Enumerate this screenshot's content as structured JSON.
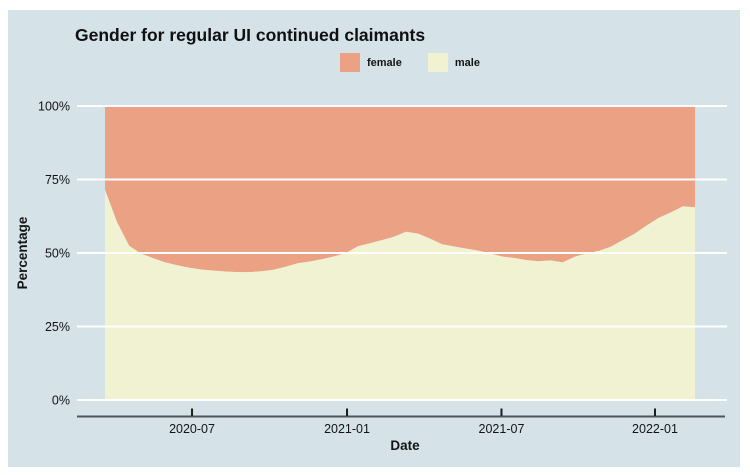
{
  "title": "Gender for regular UI continued claimants",
  "card_background": "#D5E2E8",
  "legend": [
    {
      "label": "female",
      "color": "#EBA184"
    },
    {
      "label": "male",
      "color": "#F1F2D2"
    }
  ],
  "chart_data": {
    "type": "area",
    "stacked": true,
    "normalized_percent": true,
    "title": "Gender for regular UI continued claimants",
    "xlabel": "Date",
    "ylabel": "Percentage",
    "ylim": [
      0,
      100
    ],
    "grid": true,
    "gridline_color": "#ffffff",
    "legend_position": "top-center",
    "y_ticks": [
      {
        "label": "0%",
        "value": 0
      },
      {
        "label": "25%",
        "value": 25
      },
      {
        "label": "50%",
        "value": 50
      },
      {
        "label": "75%",
        "value": 75
      },
      {
        "label": "100%",
        "value": 100
      }
    ],
    "x_ticks": [
      {
        "label": "2020-07",
        "pos": 0.1475
      },
      {
        "label": "2021-01",
        "pos": 0.4102
      },
      {
        "label": "2021-07",
        "pos": 0.672
      },
      {
        "label": "2022-01",
        "pos": 0.9322
      }
    ],
    "x": [
      "2020-03-22",
      "2020-04-05",
      "2020-04-19",
      "2020-05-03",
      "2020-05-17",
      "2020-05-31",
      "2020-06-14",
      "2020-06-28",
      "2020-07-12",
      "2020-07-26",
      "2020-08-09",
      "2020-08-23",
      "2020-09-06",
      "2020-09-20",
      "2020-10-04",
      "2020-10-18",
      "2020-11-01",
      "2020-11-15",
      "2020-11-29",
      "2020-12-13",
      "2020-12-27",
      "2021-01-10",
      "2021-01-24",
      "2021-02-07",
      "2021-02-21",
      "2021-03-07",
      "2021-03-21",
      "2021-04-04",
      "2021-04-18",
      "2021-05-02",
      "2021-05-16",
      "2021-05-30",
      "2021-06-13",
      "2021-06-27",
      "2021-07-11",
      "2021-07-25",
      "2021-08-08",
      "2021-08-22",
      "2021-09-05",
      "2021-09-19",
      "2021-10-03",
      "2021-10-17",
      "2021-10-31",
      "2021-11-14",
      "2021-11-28",
      "2021-12-12",
      "2021-12-26",
      "2022-01-09",
      "2022-01-23",
      "2022-02-06"
    ],
    "series": [
      {
        "name": "male",
        "color": "#F1F2D2",
        "values": [
          71.5,
          60.5,
          52.5,
          49.8,
          48.2,
          46.8,
          45.8,
          45.0,
          44.4,
          44.0,
          43.7,
          43.5,
          43.5,
          43.8,
          44.3,
          45.3,
          46.5,
          47.1,
          47.9,
          48.8,
          50.0,
          52.3,
          53.3,
          54.4,
          55.5,
          57.2,
          56.6,
          54.9,
          53.0,
          52.2,
          51.5,
          50.8,
          49.8,
          48.8,
          48.3,
          47.6,
          47.2,
          47.5,
          46.8,
          48.7,
          49.9,
          50.7,
          52.1,
          54.4,
          56.6,
          59.4,
          62.0,
          63.8,
          65.9,
          65.5
        ]
      },
      {
        "name": "female",
        "color": "#EBA184",
        "values": [
          28.5,
          39.5,
          47.5,
          50.2,
          51.8,
          53.2,
          54.2,
          55.0,
          55.6,
          56.0,
          56.3,
          56.5,
          56.5,
          56.2,
          55.7,
          54.7,
          53.5,
          52.9,
          52.1,
          51.2,
          50.0,
          47.7,
          46.7,
          45.6,
          44.5,
          42.8,
          43.4,
          45.1,
          47.0,
          47.8,
          48.5,
          49.2,
          50.2,
          51.2,
          51.7,
          52.4,
          52.8,
          52.5,
          53.2,
          51.3,
          50.1,
          49.3,
          47.9,
          45.6,
          43.4,
          40.6,
          38.0,
          36.2,
          34.1,
          34.5
        ]
      }
    ]
  }
}
